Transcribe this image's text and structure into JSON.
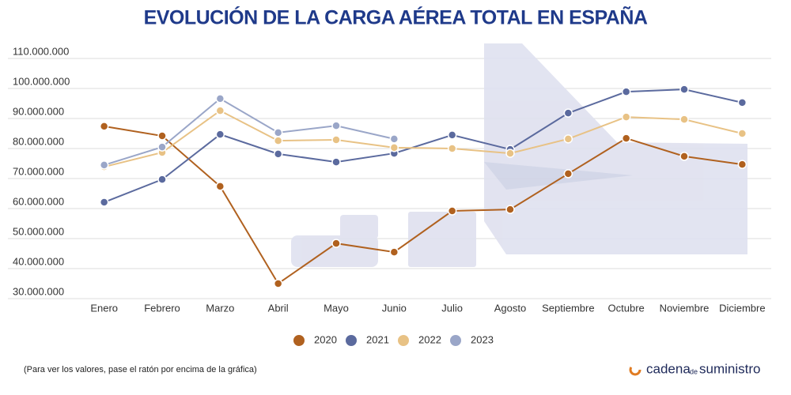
{
  "chart_data": {
    "type": "line",
    "title": "EVOLUCIÓN DE LA CARGA AÉREA TOTAL EN ESPAÑA",
    "categories": [
      "Enero",
      "Febrero",
      "Marzo",
      "Abril",
      "Mayo",
      "Junio",
      "Julio",
      "Agosto",
      "Septiembre",
      "Octubre",
      "Noviembre",
      "Diciembre"
    ],
    "series": [
      {
        "name": "2020",
        "color": "#b0611f",
        "values": [
          87400000,
          84200000,
          67400000,
          35000000,
          48400000,
          45500000,
          59200000,
          59700000,
          71600000,
          83400000,
          77400000,
          74700000
        ]
      },
      {
        "name": "2021",
        "color": "#5b6a9e",
        "values": [
          62100000,
          69700000,
          84700000,
          78200000,
          75500000,
          78400000,
          84500000,
          79700000,
          91800000,
          98900000,
          99700000,
          95300000
        ]
      },
      {
        "name": "2022",
        "color": "#e8c285",
        "values": [
          73900000,
          78700000,
          92600000,
          82600000,
          82900000,
          80300000,
          80000000,
          78400000,
          83200000,
          90500000,
          89700000,
          85000000
        ]
      },
      {
        "name": "2023",
        "color": "#9aa6c8",
        "values": [
          74500000,
          80500000,
          96600000,
          85300000,
          87600000,
          83200000,
          null,
          null,
          null,
          null,
          null,
          null
        ]
      }
    ],
    "ylim": [
      30000000,
      110000000
    ],
    "yticks": [
      {
        "value": 30000000,
        "label": "30.000.000"
      },
      {
        "value": 40000000,
        "label": "40.000.000"
      },
      {
        "value": 50000000,
        "label": "50.000.000"
      },
      {
        "value": 60000000,
        "label": "60.000.000"
      },
      {
        "value": 70000000,
        "label": "70.000.000"
      },
      {
        "value": 80000000,
        "label": "80.000.000"
      },
      {
        "value": 90000000,
        "label": "90.000.000"
      },
      {
        "value": 100000000,
        "label": "100.000.000"
      },
      {
        "value": 110000000,
        "label": "110.000.000"
      }
    ],
    "grid": true,
    "legend": "bottom",
    "footnote": "(Para ver los valores, pase el ratón por encima de la gráfica)",
    "logo": {
      "first": "cadena",
      "middle": "de",
      "last": "suministro"
    }
  }
}
